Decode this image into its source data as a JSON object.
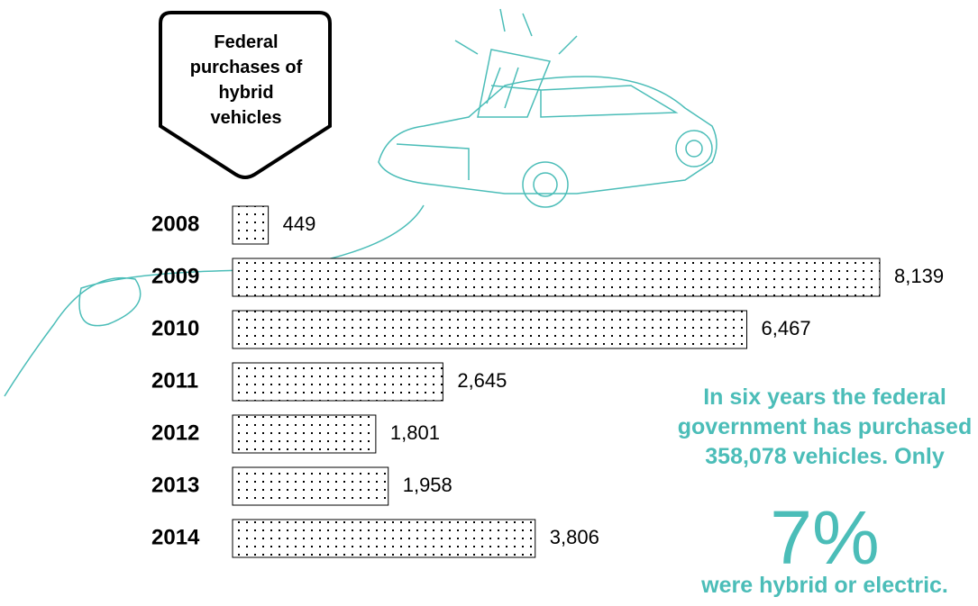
{
  "chart_data": {
    "type": "bar",
    "orientation": "horizontal",
    "title": "Federal purchases of hybrid vehicles",
    "categories": [
      "2008",
      "2009",
      "2010",
      "2011",
      "2012",
      "2013",
      "2014"
    ],
    "values": [
      449,
      8139,
      6467,
      2645,
      1801,
      1958,
      3806
    ],
    "value_labels": [
      "449",
      "8,139",
      "6,467",
      "2,645",
      "1,801",
      "1,958",
      "3,806"
    ],
    "color": "#000000",
    "annotation": "In six years the federal government has purchased 358,078 vehicles. Only",
    "highlight": "7%",
    "annotation_end": "were hybrid or electric.",
    "annotation_color": "#4bbdb8"
  }
}
